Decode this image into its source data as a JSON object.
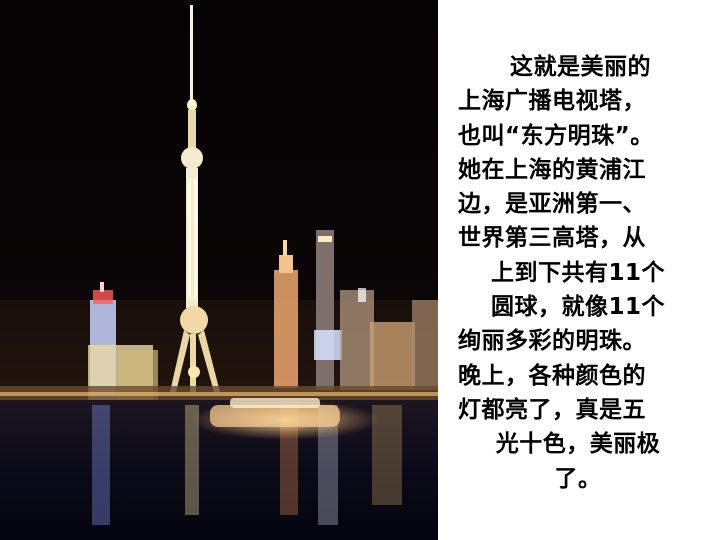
{
  "slide": {
    "photo_alt": "",
    "text_lines": [
      "这就是美丽的",
      "上海广播电视塔，",
      "也叫“东方明珠”。",
      "她在上海的黄浦江",
      "边，是亚洲第一、",
      "世界第三高塔，从",
      "上到下共有11个",
      "圆球，就像11个",
      "绚丽多彩的明珠。",
      "晚上，各种颜色的",
      "灯都亮了，真是五",
      "光十色，美丽极",
      "了。"
    ]
  }
}
